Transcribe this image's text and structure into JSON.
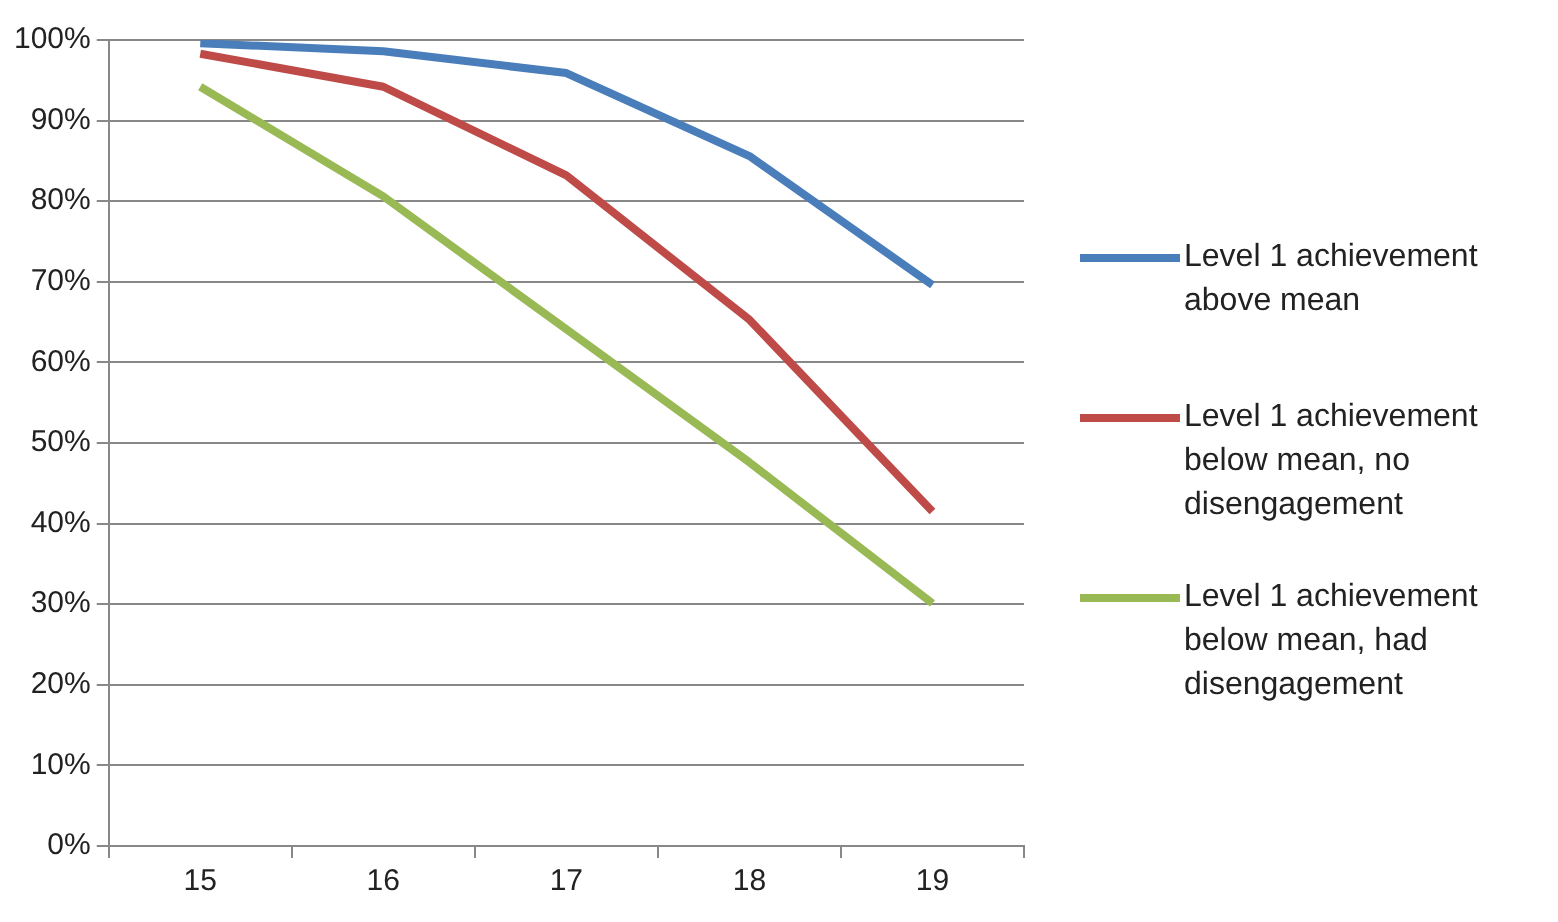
{
  "chart_data": {
    "type": "line",
    "categories": [
      "15",
      "16",
      "17",
      "18",
      "19"
    ],
    "series": [
      {
        "name": "Level 1 achievement above mean",
        "color": "#4a7ebb",
        "values": [
          99.6,
          98.6,
          95.9,
          85.6,
          69.6
        ]
      },
      {
        "name": "Level 1 achievement below mean, no disengagement",
        "color": "#be4b48",
        "values": [
          98.3,
          94.2,
          83.2,
          65.3,
          41.5
        ]
      },
      {
        "name": "Level 1 achievement below mean, had disengagement",
        "color": "#98b954",
        "values": [
          94.2,
          80.6,
          64.1,
          47.6,
          30.1
        ]
      }
    ],
    "ylim": [
      0,
      100
    ],
    "yticks": [
      {
        "value": 0,
        "label": "0%"
      },
      {
        "value": 10,
        "label": "10%"
      },
      {
        "value": 20,
        "label": "20%"
      },
      {
        "value": 30,
        "label": "30%"
      },
      {
        "value": 40,
        "label": "40%"
      },
      {
        "value": 50,
        "label": "50%"
      },
      {
        "value": 60,
        "label": "60%"
      },
      {
        "value": 70,
        "label": "70%"
      },
      {
        "value": 80,
        "label": "80%"
      },
      {
        "value": 90,
        "label": "90%"
      },
      {
        "value": 100,
        "label": "100%"
      }
    ],
    "grid": "y",
    "legend": "right",
    "marker": "none",
    "line_style": "solid"
  }
}
